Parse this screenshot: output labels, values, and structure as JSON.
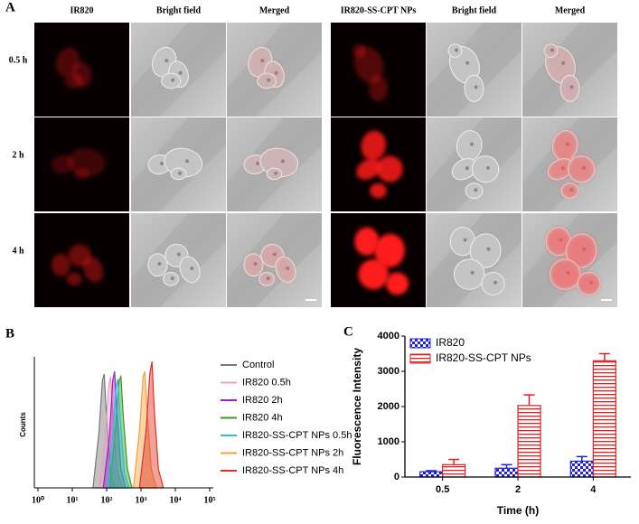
{
  "panel_a": {
    "label": "A",
    "columns": [
      "IR820",
      "Bright field",
      "Merged",
      "IR820-SS-CPT NPs",
      "Bright field",
      "Merged"
    ],
    "rows": [
      "0.5 h",
      "2 h",
      "4 h"
    ]
  },
  "chart_data": [
    {
      "panel": "B",
      "type": "area",
      "ylabel": "Counts",
      "log_x": true,
      "xlim": [
        1,
        100000
      ],
      "xticks": [
        {
          "value": 1,
          "label": "10⁰"
        },
        {
          "value": 10,
          "label": "10¹"
        },
        {
          "value": 100,
          "label": "10²"
        },
        {
          "value": 1000,
          "label": "10³"
        },
        {
          "value": 10000,
          "label": "10⁴"
        },
        {
          "value": 100000,
          "label": "10⁵"
        }
      ],
      "ylim": [
        0,
        100
      ],
      "series": [
        {
          "name": "Control",
          "color": "#777777",
          "x": [
            40,
            60,
            75,
            85,
            100,
            130,
            180
          ],
          "values": [
            0,
            45,
            85,
            90,
            55,
            12,
            0
          ]
        },
        {
          "name": "IR820  0.5h",
          "color": "#e8a0c0",
          "x": [
            60,
            90,
            115,
            130,
            150,
            200,
            280
          ],
          "values": [
            0,
            40,
            80,
            88,
            60,
            15,
            0
          ]
        },
        {
          "name": "IR820  2h",
          "color": "#a020c0",
          "x": [
            80,
            120,
            150,
            170,
            200,
            260,
            360
          ],
          "values": [
            0,
            40,
            85,
            92,
            60,
            15,
            0
          ]
        },
        {
          "name": "IR820  4h",
          "color": "#3a9a20",
          "x": [
            120,
            180,
            230,
            260,
            300,
            400,
            550
          ],
          "values": [
            0,
            45,
            85,
            88,
            60,
            15,
            0
          ]
        },
        {
          "name": "IR820-SS-CPT NPs  0.5h",
          "color": "#30c0d0",
          "x": [
            100,
            150,
            190,
            210,
            250,
            330,
            450
          ],
          "values": [
            0,
            40,
            80,
            86,
            55,
            12,
            0
          ]
        },
        {
          "name": "IR820-SS-CPT NPs  2h",
          "color": "#f0a040",
          "x": [
            600,
            900,
            1150,
            1300,
            1500,
            2000,
            2800
          ],
          "values": [
            0,
            45,
            88,
            92,
            60,
            15,
            0
          ]
        },
        {
          "name": "IR820-SS-CPT NPs  4h",
          "color": "#e03020",
          "x": [
            900,
            1400,
            1800,
            2100,
            2400,
            3200,
            4500
          ],
          "values": [
            0,
            45,
            90,
            100,
            65,
            15,
            0
          ]
        }
      ]
    },
    {
      "panel": "C",
      "type": "bar",
      "xlabel": "Time (h)",
      "ylabel": "Fluorescence Intensity",
      "categories": [
        "0.5",
        "2",
        "4"
      ],
      "ylim": [
        0,
        4000
      ],
      "yticks": [
        0,
        1000,
        2000,
        3000,
        4000
      ],
      "legend": "upper left",
      "series": [
        {
          "name": "IR820",
          "color": "#2020e0",
          "values": [
            150,
            250,
            450
          ],
          "errors": [
            30,
            100,
            130
          ]
        },
        {
          "name": "IR820-SS-CPT NPs",
          "color": "#e02020",
          "values": [
            350,
            2030,
            3300
          ],
          "errors": [
            150,
            300,
            200
          ]
        }
      ]
    }
  ]
}
